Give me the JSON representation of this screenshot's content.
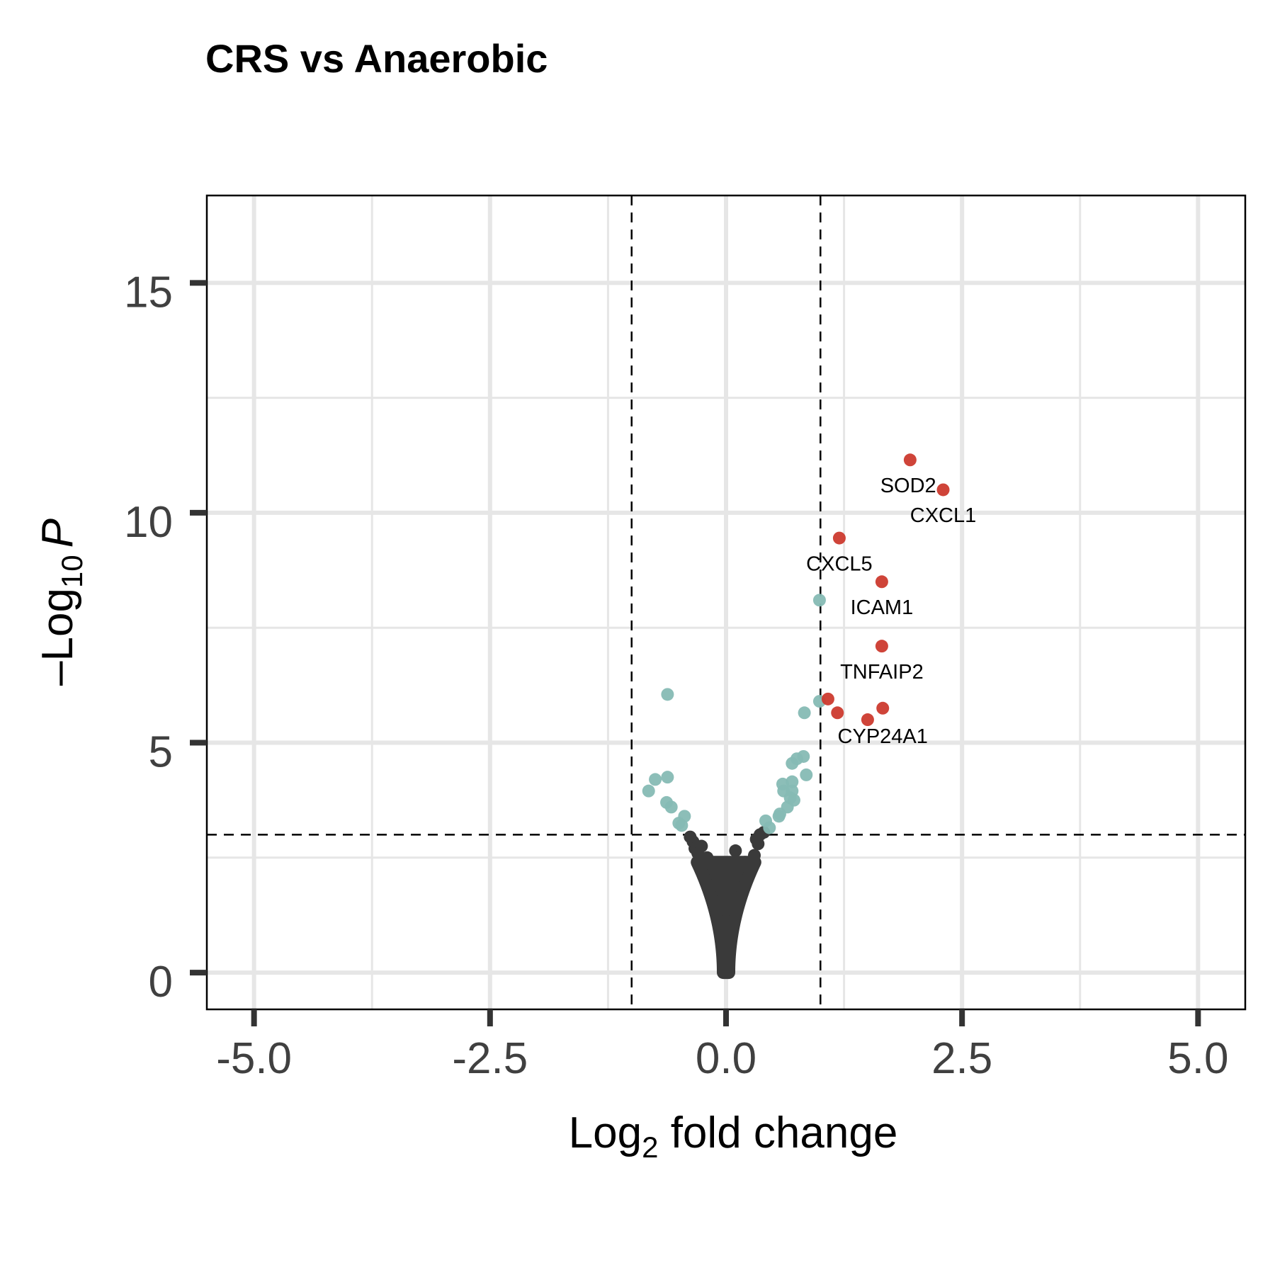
{
  "chart_data": {
    "type": "scatter",
    "title": "CRS vs Anaerobic",
    "xlabel": {
      "base": "Log",
      "sub": "2",
      "rest": " fold change"
    },
    "ylabel": {
      "prefix": "–Log",
      "sub": "10",
      "rest": "P"
    },
    "xlim": [
      -5.5,
      5.5
    ],
    "ylim": [
      -0.8,
      16.9
    ],
    "x_ticks": [
      -5,
      -2.5,
      0,
      2.5,
      5
    ],
    "x_tick_labels": [
      "-5.0",
      "-2.5",
      "0.0",
      "2.5",
      "5.0"
    ],
    "y_ticks": [
      0,
      5,
      10,
      15
    ],
    "y_tick_labels": [
      "0",
      "5",
      "10",
      "15"
    ],
    "grid": true,
    "thresholds": {
      "log2fc": [
        -1,
        1
      ],
      "neg_log10_p": 3.0
    },
    "colors": {
      "ns": "#3a3a3a",
      "p_only": "#86bbb4",
      "p_and_fc": "#cc3a2e",
      "grid": "#e6e6e6"
    },
    "significant_up": [
      {
        "x": 1.95,
        "y": 11.15
      },
      {
        "x": 2.3,
        "y": 10.5
      },
      {
        "x": 1.2,
        "y": 9.45
      },
      {
        "x": 1.65,
        "y": 8.5
      },
      {
        "x": 1.65,
        "y": 7.1
      },
      {
        "x": 1.08,
        "y": 5.95
      },
      {
        "x": 1.18,
        "y": 5.65
      },
      {
        "x": 1.66,
        "y": 5.75
      },
      {
        "x": 1.5,
        "y": 5.5
      }
    ],
    "p_only": [
      {
        "x": 0.99,
        "y": 8.1
      },
      {
        "x": 0.99,
        "y": 5.9
      },
      {
        "x": 0.83,
        "y": 5.65
      },
      {
        "x": -0.62,
        "y": 6.05
      },
      {
        "x": -0.82,
        "y": 3.95
      },
      {
        "x": -0.75,
        "y": 4.2
      },
      {
        "x": -0.62,
        "y": 4.25
      },
      {
        "x": -0.63,
        "y": 3.7
      },
      {
        "x": -0.58,
        "y": 3.6
      },
      {
        "x": -0.5,
        "y": 3.25
      },
      {
        "x": -0.47,
        "y": 3.2
      },
      {
        "x": -0.44,
        "y": 3.4
      },
      {
        "x": 0.82,
        "y": 4.7
      },
      {
        "x": 0.75,
        "y": 4.65
      },
      {
        "x": 0.7,
        "y": 4.55
      },
      {
        "x": 0.85,
        "y": 4.3
      },
      {
        "x": 0.7,
        "y": 4.15
      },
      {
        "x": 0.6,
        "y": 4.1
      },
      {
        "x": 0.61,
        "y": 3.95
      },
      {
        "x": 0.7,
        "y": 3.95
      },
      {
        "x": 0.68,
        "y": 3.8
      },
      {
        "x": 0.72,
        "y": 3.75
      },
      {
        "x": 0.65,
        "y": 3.6
      },
      {
        "x": 0.56,
        "y": 3.4
      },
      {
        "x": 0.57,
        "y": 3.45
      },
      {
        "x": 0.42,
        "y": 3.3
      },
      {
        "x": 0.46,
        "y": 3.15
      }
    ],
    "ns_points": [
      {
        "x": -0.38,
        "y": 2.95
      },
      {
        "x": -0.35,
        "y": 2.85
      },
      {
        "x": -0.33,
        "y": 2.7
      },
      {
        "x": -0.3,
        "y": 2.6
      },
      {
        "x": -0.26,
        "y": 2.75
      },
      {
        "x": -0.24,
        "y": 2.45
      },
      {
        "x": -0.2,
        "y": 2.5
      },
      {
        "x": 0.1,
        "y": 2.65
      },
      {
        "x": 0.2,
        "y": 2.4
      },
      {
        "x": 0.3,
        "y": 2.55
      },
      {
        "x": 0.34,
        "y": 2.8
      },
      {
        "x": 0.36,
        "y": 3.0
      },
      {
        "x": 0.4,
        "y": 3.05
      },
      {
        "x": 0.32,
        "y": 2.9
      }
    ],
    "labels": [
      {
        "text": "SOD2",
        "x": 1.93,
        "y": 10.6
      },
      {
        "text": "CXCL1",
        "x": 2.3,
        "y": 9.95
      },
      {
        "text": "CXCL5",
        "x": 1.2,
        "y": 8.9
      },
      {
        "text": "ICAM1",
        "x": 1.65,
        "y": 7.95
      },
      {
        "text": "TNFAIP2",
        "x": 1.65,
        "y": 6.55
      },
      {
        "text": "CYP24A1",
        "x": 1.66,
        "y": 5.15
      }
    ]
  }
}
